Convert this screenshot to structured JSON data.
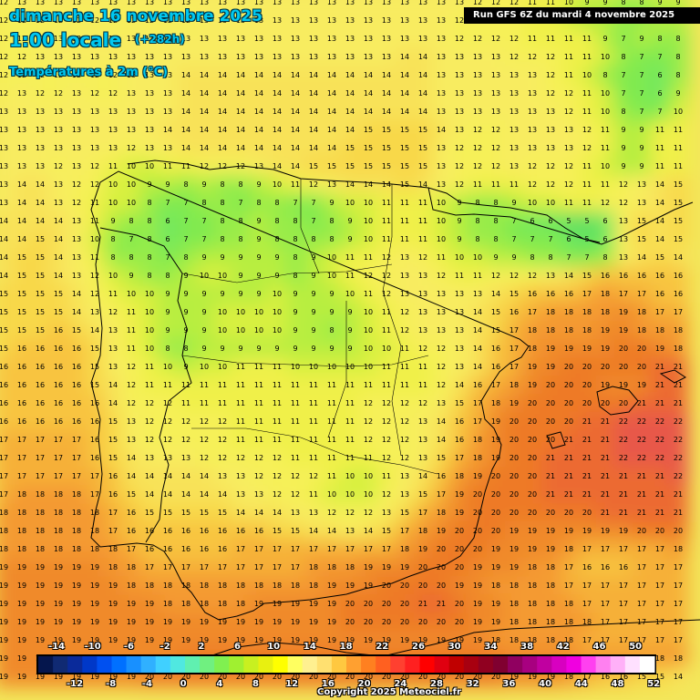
{
  "header": {
    "date": "dimanche 16 novembre 2025",
    "time": "1:00 locale",
    "offset": "(+282h)",
    "parameter": "Températures à 2m (°C)"
  },
  "run_info": "Run GFS 6Z du mardi 4 novembre 2025",
  "copyright": "Copyright 2025 Meteociel.fr",
  "legend": {
    "top_labels": [
      "-14",
      "-10",
      "-6",
      "-2",
      "2",
      "6",
      "10",
      "14",
      "18",
      "22",
      "26",
      "30",
      "34",
      "38",
      "42",
      "46",
      "50"
    ],
    "bottom_labels": [
      "-12",
      "-8",
      "-4",
      "0",
      "4",
      "8",
      "12",
      "16",
      "20",
      "24",
      "28",
      "32",
      "36",
      "40",
      "44",
      "48",
      "52"
    ],
    "colors": [
      "#05164d",
      "#102a73",
      "#0a2a9a",
      "#0038c8",
      "#0050f0",
      "#0070ff",
      "#1890ff",
      "#30b0ff",
      "#40d0ff",
      "#50e8e0",
      "#60f0b0",
      "#70f080",
      "#80f050",
      "#a0f030",
      "#c8f020",
      "#e8f010",
      "#ffff00",
      "#ffff60",
      "#fff090",
      "#ffe070",
      "#ffc840",
      "#ffa030",
      "#ff8020",
      "#ff6020",
      "#ff4030",
      "#ff2020",
      "#ff0000",
      "#e00010",
      "#c00000",
      "#a80010",
      "#900020",
      "#800030",
      "#900060",
      "#a80080",
      "#c000a0",
      "#d800c0",
      "#f000e0",
      "#ff40f0",
      "#ff80f0",
      "#ffb0f8",
      "#ffe0ff",
      "#ffffff"
    ]
  },
  "palette": {
    "sea_warm": "#f07a2a",
    "land_cool": "#80e040",
    "land_mild": "#f2ee5a",
    "coast_line": "#000000"
  },
  "grid_values": [
    [
      12,
      13,
      13,
      13,
      13,
      13,
      13,
      13,
      13,
      13,
      13,
      13,
      13,
      13,
      13,
      13,
      13,
      13,
      13,
      13,
      13,
      13,
      13,
      13,
      13,
      13,
      12,
      12,
      12,
      11,
      11,
      10,
      9,
      9,
      8,
      8,
      9,
      9
    ],
    [
      12,
      12,
      12,
      12,
      12,
      12,
      12,
      12,
      12,
      12,
      12,
      13,
      13,
      13,
      13,
      13,
      13,
      13,
      13,
      13,
      13,
      13,
      13,
      13,
      13,
      12,
      12,
      12,
      12,
      11,
      11,
      10,
      9,
      9,
      8,
      8,
      9,
      9
    ],
    [
      12,
      12,
      12,
      13,
      13,
      13,
      13,
      13,
      13,
      13,
      13,
      13,
      13,
      13,
      13,
      13,
      13,
      13,
      13,
      13,
      13,
      13,
      13,
      13,
      13,
      12,
      12,
      12,
      12,
      11,
      11,
      11,
      11,
      9,
      7,
      9,
      8,
      8
    ],
    [
      12,
      12,
      13,
      13,
      13,
      13,
      13,
      13,
      13,
      13,
      13,
      13,
      13,
      13,
      13,
      13,
      13,
      13,
      13,
      13,
      13,
      13,
      14,
      14,
      13,
      13,
      13,
      13,
      12,
      12,
      12,
      11,
      11,
      10,
      8,
      7,
      7,
      8
    ],
    [
      12,
      12,
      12,
      12,
      12,
      12,
      12,
      13,
      13,
      13,
      14,
      14,
      14,
      14,
      14,
      14,
      14,
      14,
      14,
      14,
      14,
      14,
      14,
      14,
      13,
      13,
      13,
      13,
      13,
      13,
      12,
      11,
      10,
      8,
      7,
      7,
      6,
      8
    ],
    [
      12,
      13,
      12,
      12,
      13,
      12,
      12,
      13,
      13,
      13,
      14,
      14,
      14,
      14,
      14,
      14,
      14,
      14,
      14,
      14,
      14,
      14,
      14,
      14,
      13,
      13,
      13,
      13,
      13,
      13,
      12,
      12,
      11,
      10,
      7,
      7,
      6,
      9
    ],
    [
      13,
      13,
      13,
      13,
      13,
      13,
      13,
      13,
      13,
      13,
      14,
      14,
      14,
      14,
      14,
      14,
      14,
      14,
      14,
      14,
      14,
      14,
      14,
      14,
      13,
      13,
      13,
      13,
      13,
      13,
      13,
      12,
      11,
      10,
      8,
      7,
      7,
      10
    ],
    [
      13,
      13,
      13,
      13,
      13,
      13,
      13,
      13,
      13,
      14,
      14,
      14,
      14,
      14,
      14,
      14,
      14,
      14,
      14,
      14,
      15,
      15,
      15,
      15,
      14,
      13,
      12,
      12,
      13,
      13,
      13,
      13,
      12,
      11,
      9,
      9,
      11,
      11
    ],
    [
      13,
      13,
      13,
      13,
      13,
      13,
      13,
      12,
      13,
      13,
      14,
      14,
      14,
      14,
      14,
      14,
      14,
      14,
      14,
      15,
      15,
      15,
      15,
      15,
      13,
      12,
      12,
      12,
      13,
      13,
      13,
      13,
      12,
      11,
      9,
      9,
      11,
      11
    ],
    [
      13,
      13,
      13,
      12,
      13,
      12,
      11,
      10,
      10,
      11,
      11,
      12,
      12,
      12,
      13,
      14,
      14,
      15,
      15,
      15,
      15,
      15,
      15,
      15,
      13,
      12,
      12,
      12,
      13,
      12,
      12,
      12,
      11,
      10,
      9,
      9,
      11,
      11
    ],
    [
      13,
      14,
      14,
      13,
      12,
      12,
      10,
      10,
      9,
      9,
      8,
      9,
      8,
      8,
      9,
      10,
      11,
      12,
      13,
      14,
      14,
      14,
      15,
      14,
      13,
      12,
      11,
      11,
      11,
      12,
      12,
      12,
      11,
      11,
      12,
      13,
      14,
      15
    ],
    [
      13,
      14,
      14,
      13,
      12,
      11,
      10,
      10,
      8,
      7,
      7,
      8,
      8,
      7,
      8,
      8,
      7,
      7,
      9,
      10,
      10,
      11,
      11,
      11,
      10,
      9,
      8,
      8,
      9,
      10,
      10,
      11,
      11,
      12,
      12,
      13,
      14,
      15
    ],
    [
      14,
      14,
      14,
      14,
      13,
      11,
      9,
      8,
      8,
      6,
      7,
      7,
      8,
      8,
      9,
      8,
      8,
      7,
      8,
      9,
      10,
      11,
      11,
      11,
      10,
      9,
      8,
      8,
      7,
      6,
      6,
      5,
      5,
      6,
      13,
      15,
      14,
      15
    ],
    [
      14,
      14,
      15,
      14,
      13,
      10,
      8,
      7,
      8,
      6,
      7,
      7,
      8,
      8,
      9,
      8,
      8,
      8,
      8,
      9,
      10,
      11,
      11,
      11,
      10,
      9,
      8,
      8,
      7,
      7,
      7,
      6,
      5,
      6,
      13,
      15,
      14,
      15
    ],
    [
      14,
      15,
      15,
      14,
      13,
      11,
      8,
      8,
      8,
      7,
      8,
      9,
      9,
      9,
      9,
      9,
      8,
      9,
      10,
      11,
      11,
      12,
      13,
      12,
      11,
      10,
      10,
      9,
      9,
      8,
      8,
      7,
      7,
      8,
      13,
      14,
      15,
      14
    ],
    [
      14,
      15,
      15,
      14,
      13,
      12,
      10,
      9,
      8,
      8,
      9,
      10,
      10,
      9,
      9,
      9,
      8,
      9,
      10,
      11,
      12,
      12,
      13,
      13,
      12,
      11,
      11,
      12,
      12,
      12,
      13,
      14,
      15,
      16,
      16,
      16,
      16,
      16
    ],
    [
      15,
      15,
      15,
      15,
      14,
      12,
      11,
      10,
      10,
      9,
      9,
      9,
      9,
      9,
      9,
      10,
      9,
      9,
      9,
      10,
      11,
      12,
      13,
      13,
      13,
      13,
      13,
      14,
      15,
      16,
      16,
      16,
      17,
      18,
      17,
      17,
      16,
      16
    ],
    [
      15,
      15,
      15,
      15,
      14,
      13,
      12,
      11,
      10,
      9,
      9,
      9,
      10,
      10,
      10,
      10,
      9,
      9,
      9,
      9,
      10,
      11,
      12,
      13,
      13,
      13,
      14,
      15,
      16,
      17,
      18,
      18,
      18,
      18,
      19,
      18,
      17,
      17
    ],
    [
      15,
      15,
      15,
      16,
      15,
      14,
      13,
      11,
      10,
      9,
      9,
      9,
      10,
      10,
      10,
      10,
      9,
      9,
      8,
      9,
      10,
      11,
      12,
      13,
      13,
      13,
      14,
      15,
      17,
      18,
      18,
      18,
      18,
      19,
      19,
      18,
      18,
      18
    ],
    [
      15,
      16,
      16,
      16,
      16,
      15,
      13,
      11,
      10,
      8,
      8,
      9,
      9,
      9,
      9,
      9,
      9,
      9,
      9,
      9,
      10,
      10,
      11,
      12,
      12,
      13,
      14,
      16,
      17,
      18,
      19,
      19,
      19,
      19,
      20,
      20,
      19,
      18
    ],
    [
      16,
      16,
      16,
      16,
      16,
      15,
      13,
      12,
      11,
      10,
      9,
      10,
      10,
      11,
      11,
      11,
      10,
      10,
      10,
      10,
      10,
      11,
      11,
      11,
      12,
      13,
      14,
      16,
      17,
      19,
      19,
      20,
      20,
      20,
      20,
      20,
      21,
      21
    ],
    [
      16,
      16,
      16,
      16,
      16,
      15,
      14,
      12,
      11,
      11,
      11,
      11,
      11,
      11,
      11,
      11,
      11,
      11,
      11,
      11,
      11,
      11,
      11,
      11,
      12,
      14,
      16,
      17,
      18,
      19,
      20,
      20,
      20,
      19,
      19,
      19,
      21,
      21
    ],
    [
      16,
      16,
      16,
      16,
      16,
      16,
      14,
      12,
      12,
      12,
      11,
      11,
      11,
      11,
      11,
      11,
      11,
      11,
      11,
      11,
      12,
      12,
      12,
      12,
      13,
      15,
      17,
      18,
      19,
      20,
      20,
      20,
      20,
      20,
      20,
      21,
      21,
      21
    ],
    [
      16,
      16,
      16,
      16,
      16,
      16,
      15,
      13,
      12,
      12,
      12,
      12,
      12,
      11,
      11,
      11,
      11,
      11,
      11,
      11,
      12,
      12,
      12,
      13,
      14,
      16,
      17,
      19,
      20,
      20,
      20,
      20,
      21,
      21,
      22,
      22,
      22,
      22
    ],
    [
      17,
      17,
      17,
      17,
      17,
      16,
      15,
      13,
      12,
      12,
      12,
      12,
      12,
      11,
      11,
      11,
      11,
      11,
      11,
      11,
      12,
      12,
      12,
      13,
      14,
      16,
      18,
      19,
      20,
      20,
      20,
      21,
      21,
      21,
      22,
      22,
      22,
      22
    ],
    [
      17,
      17,
      17,
      17,
      17,
      16,
      15,
      14,
      13,
      13,
      13,
      12,
      12,
      12,
      12,
      12,
      11,
      11,
      11,
      11,
      11,
      12,
      12,
      13,
      15,
      17,
      18,
      19,
      20,
      20,
      21,
      21,
      21,
      21,
      22,
      22,
      22,
      22
    ],
    [
      17,
      17,
      17,
      17,
      17,
      17,
      16,
      14,
      14,
      14,
      14,
      14,
      13,
      13,
      12,
      12,
      12,
      12,
      11,
      10,
      10,
      11,
      13,
      14,
      16,
      18,
      19,
      20,
      20,
      20,
      21,
      21,
      21,
      21,
      21,
      21,
      21,
      22
    ],
    [
      17,
      18,
      18,
      18,
      18,
      17,
      16,
      15,
      14,
      14,
      14,
      14,
      14,
      13,
      13,
      12,
      12,
      11,
      10,
      10,
      10,
      12,
      13,
      15,
      17,
      19,
      20,
      20,
      20,
      20,
      21,
      21,
      21,
      21,
      21,
      21,
      21,
      21
    ],
    [
      18,
      18,
      18,
      18,
      18,
      18,
      17,
      16,
      15,
      15,
      15,
      15,
      15,
      14,
      14,
      14,
      13,
      13,
      12,
      12,
      12,
      13,
      15,
      17,
      18,
      19,
      20,
      20,
      20,
      20,
      20,
      20,
      20,
      21,
      21,
      21,
      21,
      21
    ],
    [
      18,
      18,
      18,
      18,
      18,
      18,
      17,
      16,
      16,
      16,
      16,
      16,
      16,
      16,
      16,
      15,
      15,
      14,
      14,
      13,
      14,
      15,
      17,
      18,
      19,
      20,
      20,
      20,
      19,
      19,
      19,
      19,
      19,
      19,
      19,
      20,
      20,
      20
    ],
    [
      18,
      18,
      18,
      18,
      18,
      18,
      18,
      17,
      16,
      16,
      16,
      16,
      16,
      17,
      17,
      17,
      17,
      17,
      17,
      17,
      17,
      17,
      18,
      19,
      20,
      20,
      20,
      19,
      19,
      19,
      19,
      18,
      17,
      17,
      17,
      17,
      17,
      18
    ],
    [
      19,
      19,
      19,
      19,
      19,
      19,
      18,
      18,
      17,
      17,
      17,
      17,
      17,
      17,
      17,
      17,
      17,
      18,
      18,
      18,
      19,
      19,
      19,
      20,
      20,
      20,
      19,
      19,
      19,
      18,
      18,
      17,
      16,
      16,
      16,
      17,
      17,
      17
    ],
    [
      19,
      19,
      19,
      19,
      19,
      19,
      19,
      18,
      18,
      18,
      18,
      18,
      18,
      18,
      18,
      18,
      18,
      18,
      19,
      19,
      19,
      20,
      20,
      20,
      20,
      19,
      19,
      18,
      18,
      18,
      18,
      17,
      17,
      17,
      17,
      17,
      17,
      17
    ],
    [
      19,
      19,
      19,
      19,
      19,
      19,
      19,
      19,
      19,
      18,
      18,
      18,
      18,
      18,
      19,
      19,
      19,
      19,
      19,
      20,
      20,
      20,
      20,
      21,
      21,
      20,
      19,
      19,
      18,
      18,
      18,
      18,
      17,
      17,
      17,
      17,
      17,
      17
    ],
    [
      19,
      19,
      19,
      19,
      19,
      19,
      19,
      19,
      19,
      19,
      19,
      19,
      19,
      19,
      19,
      19,
      19,
      19,
      19,
      20,
      20,
      20,
      20,
      20,
      20,
      20,
      19,
      19,
      18,
      18,
      18,
      18,
      18,
      17,
      17,
      17,
      17,
      17
    ],
    [
      19,
      19,
      19,
      19,
      19,
      19,
      19,
      19,
      19,
      19,
      19,
      19,
      19,
      19,
      19,
      19,
      19,
      19,
      19,
      19,
      19,
      19,
      19,
      19,
      19,
      19,
      19,
      18,
      18,
      18,
      18,
      18,
      17,
      17,
      17,
      17,
      17,
      17
    ],
    [
      19,
      19,
      19,
      19,
      19,
      19,
      19,
      19,
      19,
      19,
      20,
      20,
      20,
      20,
      20,
      20,
      20,
      20,
      20,
      20,
      20,
      20,
      20,
      20,
      20,
      20,
      20,
      20,
      19,
      19,
      19,
      19,
      18,
      18,
      18,
      18,
      18,
      18
    ],
    [
      19,
      19,
      19,
      19,
      19,
      19,
      19,
      19,
      20,
      20,
      20,
      20,
      20,
      20,
      20,
      20,
      20,
      20,
      20,
      20,
      20,
      20,
      20,
      20,
      20,
      20,
      20,
      20,
      19,
      19,
      19,
      18,
      17,
      16,
      16,
      15,
      15,
      14
    ]
  ]
}
